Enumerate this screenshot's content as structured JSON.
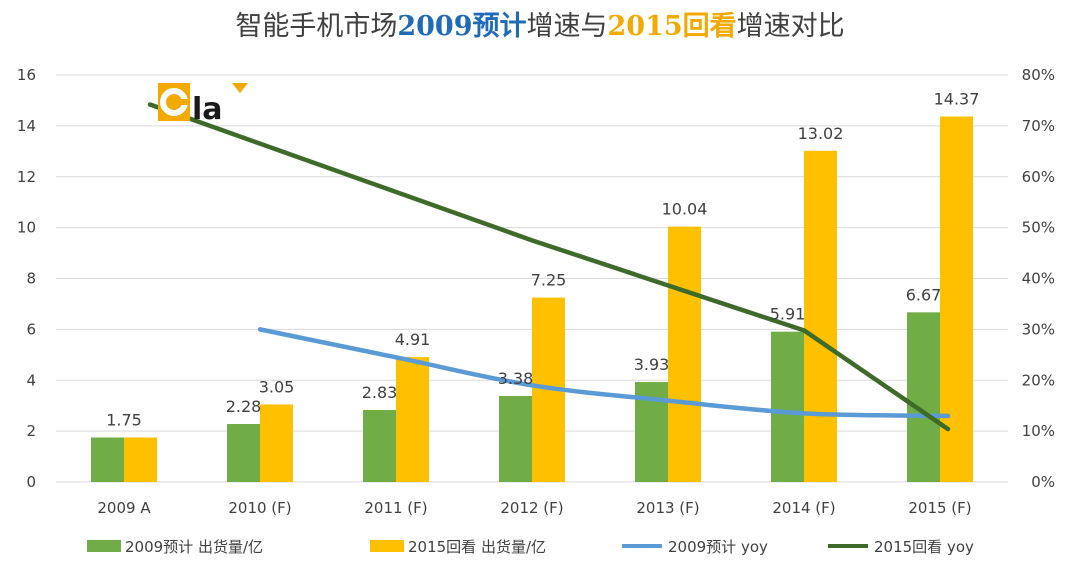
{
  "title": {
    "part1": "智能手机市场",
    "part2": "2009预计",
    "part3": "增速与",
    "part4": "2015回看",
    "part5": "增速对比"
  },
  "logo": {
    "text": "la"
  },
  "colors": {
    "title_main": "#404040",
    "title_2009": "#1f6bb5",
    "title_2015": "#f2a900",
    "bar_2009": "#70ad47",
    "bar_2015": "#ffc000",
    "line_2009": "#5b9bd5",
    "line_2015": "#3e6b2a",
    "grid": "#d9d9d9",
    "logo_bg": "#f2a900"
  },
  "chart_data": {
    "type": "bar",
    "categories": [
      "2009 A",
      "2010 (F)",
      "2011 (F)",
      "2012 (F)",
      "2013 (F)",
      "2014 (F)",
      "2015 (F)"
    ],
    "series": [
      {
        "name": "2009预计 出货量/亿",
        "type": "bar",
        "axis": "left",
        "values": [
          1.75,
          2.28,
          2.83,
          3.38,
          3.93,
          5.91,
          6.67
        ],
        "labels": [
          "1.75",
          "2.28",
          "2.83",
          "3.38",
          "3.93",
          "5.91",
          "6.67"
        ]
      },
      {
        "name": "2015回看 出货量/亿",
        "type": "bar",
        "axis": "left",
        "values": [
          1.75,
          3.05,
          4.91,
          7.25,
          10.04,
          13.02,
          14.37
        ],
        "labels": [
          "",
          "3.05",
          "4.91",
          "7.25",
          "10.04",
          "13.02",
          "14.37"
        ]
      },
      {
        "name": "2009预计 yoy",
        "type": "line",
        "axis": "right",
        "values": [
          null,
          0.3,
          0.245,
          0.19,
          0.16,
          0.135,
          0.13
        ]
      },
      {
        "name": "2015回看 yoy",
        "type": "line",
        "axis": "right",
        "values": [
          0.742,
          null,
          null,
          0.475,
          null,
          0.298,
          0.104
        ]
      }
    ],
    "y_left": {
      "min": 0,
      "max": 16,
      "step": 2,
      "ticks": [
        "0",
        "2",
        "4",
        "6",
        "8",
        "10",
        "12",
        "14",
        "16"
      ]
    },
    "y_right": {
      "min": 0,
      "max": 0.8,
      "step": 0.1,
      "ticks": [
        "0%",
        "10%",
        "20%",
        "30%",
        "40%",
        "50%",
        "60%",
        "70%",
        "80%"
      ]
    },
    "grid": true,
    "legend": "bottom"
  }
}
